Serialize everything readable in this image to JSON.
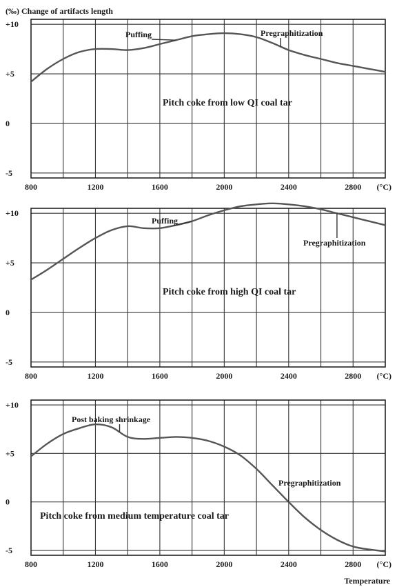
{
  "page": {
    "ytitle": "(‰)  Change of artifacts length",
    "xtitle": "Temperature"
  },
  "chart_data": [
    {
      "type": "line",
      "label": "Pitch coke from low QI coal tar",
      "unit": "(°C)",
      "xlim": [
        800,
        3000
      ],
      "ylim": [
        -5.5,
        10.5
      ],
      "xticks": [
        800,
        1200,
        1600,
        2000,
        2400,
        2800
      ],
      "yticks": [
        10,
        5,
        0,
        -5
      ],
      "ytick_labels": [
        "+10",
        "+5",
        "0",
        "-5"
      ],
      "x": [
        800,
        900,
        1000,
        1100,
        1200,
        1300,
        1400,
        1500,
        1600,
        1700,
        1800,
        1900,
        2000,
        2100,
        2200,
        2300,
        2400,
        2500,
        2600,
        2700,
        2800,
        2900,
        3000
      ],
      "y": [
        4.2,
        5.5,
        6.5,
        7.2,
        7.5,
        7.5,
        7.4,
        7.6,
        8.0,
        8.4,
        8.8,
        9.0,
        9.1,
        9.0,
        8.7,
        8.1,
        7.4,
        6.9,
        6.5,
        6.1,
        5.8,
        5.5,
        5.2
      ],
      "annotations": [
        {
          "text": "Puffing",
          "x": 1700
        },
        {
          "text": "Pregraphitization",
          "x": 2350
        }
      ]
    },
    {
      "type": "line",
      "label": "Pitch coke from high QI coal tar",
      "unit": "(°C)",
      "xlim": [
        800,
        3000
      ],
      "ylim": [
        -5.5,
        10.5
      ],
      "xticks": [
        800,
        1200,
        1600,
        2000,
        2400,
        2800
      ],
      "yticks": [
        10,
        5,
        0,
        -5
      ],
      "ytick_labels": [
        "+10",
        "+5",
        "0",
        "-5"
      ],
      "x": [
        800,
        900,
        1000,
        1100,
        1200,
        1300,
        1400,
        1500,
        1600,
        1700,
        1800,
        1900,
        2000,
        2100,
        2200,
        2300,
        2400,
        2500,
        2600,
        2700,
        2800,
        2900,
        3000
      ],
      "y": [
        3.3,
        4.3,
        5.4,
        6.5,
        7.5,
        8.3,
        8.7,
        8.5,
        8.5,
        8.8,
        9.2,
        9.8,
        10.3,
        10.7,
        10.9,
        11.0,
        10.9,
        10.7,
        10.4,
        10.0,
        9.6,
        9.2,
        8.8
      ],
      "annotations": [
        {
          "text": "Puffing",
          "x": 1800
        },
        {
          "text": "Pregraphitization",
          "x": 2700
        }
      ]
    },
    {
      "type": "line",
      "label": "Pitch coke from medium temperature coal tar",
      "unit": "(°C)",
      "xlim": [
        800,
        3000
      ],
      "ylim": [
        -5.5,
        10.5
      ],
      "xticks": [
        800,
        1200,
        1600,
        2000,
        2400,
        2800
      ],
      "yticks": [
        10,
        5,
        0,
        -5
      ],
      "ytick_labels": [
        "+10",
        "+5",
        "0",
        "-5"
      ],
      "x": [
        800,
        900,
        1000,
        1100,
        1200,
        1300,
        1400,
        1500,
        1600,
        1700,
        1800,
        1900,
        2000,
        2100,
        2200,
        2300,
        2400,
        2500,
        2600,
        2700,
        2800,
        2900,
        3000
      ],
      "y": [
        4.7,
        6.0,
        7.0,
        7.6,
        8.0,
        7.7,
        6.7,
        6.5,
        6.6,
        6.7,
        6.6,
        6.3,
        5.7,
        4.8,
        3.4,
        1.7,
        0.0,
        -1.6,
        -2.9,
        -3.9,
        -4.6,
        -4.9,
        -5.1
      ],
      "annotations": [
        {
          "text": "Post baking shrinkage",
          "x": 1350
        },
        {
          "text": "Pregraphitization",
          "x": 2400
        }
      ]
    }
  ]
}
